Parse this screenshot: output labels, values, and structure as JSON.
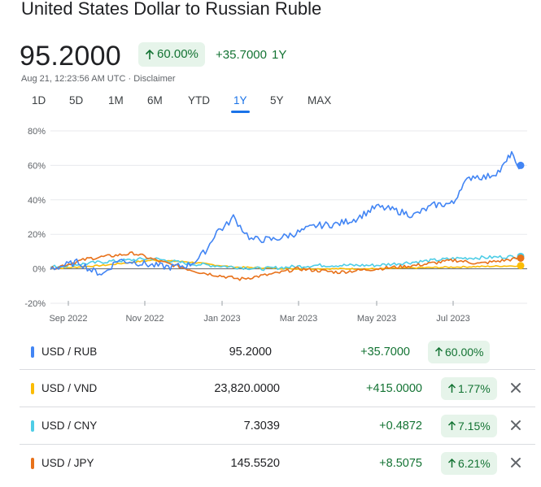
{
  "header": {
    "title": "United States Dollar to Russian Ruble",
    "price": "95.2000",
    "pct_badge": "60.00%",
    "abs_change": "+35.7000",
    "period": "1Y",
    "timestamp": "Aug 21, 12:23:56 AM UTC",
    "separator": "·",
    "disclaimer": "Disclaimer"
  },
  "ranges": [
    "1D",
    "5D",
    "1M",
    "6M",
    "YTD",
    "1Y",
    "5Y",
    "MAX"
  ],
  "active_range": "1Y",
  "colors": {
    "up_green": "#137333",
    "up_bg": "#e6f4ea",
    "accent": "#1a73e8"
  },
  "icons": {
    "up_arrow": "arrow-up-icon",
    "close": "close-icon"
  },
  "chart_data": {
    "type": "line",
    "x_tick_labels": [
      "Sep 2022",
      "Nov 2022",
      "Jan 2023",
      "Mar 2023",
      "May 2023",
      "Jul 2023"
    ],
    "y_tick_labels": [
      "80%",
      "60%",
      "40%",
      "20%",
      "0%",
      "-20%"
    ],
    "ylim": [
      -20,
      80
    ],
    "x_range": [
      "2022-08-21",
      "2023-08-21"
    ],
    "grid": "horizontal",
    "series": [
      {
        "name": "USD / RUB",
        "color": "#4285f4",
        "points": [
          [
            "2022-08-21",
            0
          ],
          [
            "2022-09-01",
            2
          ],
          [
            "2022-09-12",
            4
          ],
          [
            "2022-09-22",
            -1
          ],
          [
            "2022-10-01",
            -3
          ],
          [
            "2022-10-12",
            5
          ],
          [
            "2022-10-25",
            4
          ],
          [
            "2022-11-08",
            2
          ],
          [
            "2022-11-22",
            1
          ],
          [
            "2022-12-06",
            2
          ],
          [
            "2022-12-14",
            6
          ],
          [
            "2022-12-21",
            12
          ],
          [
            "2022-12-28",
            22
          ],
          [
            "2023-01-03",
            24
          ],
          [
            "2023-01-10",
            30
          ],
          [
            "2023-01-17",
            23
          ],
          [
            "2023-01-24",
            17
          ],
          [
            "2023-02-01",
            17
          ],
          [
            "2023-02-10",
            17
          ],
          [
            "2023-02-20",
            19
          ],
          [
            "2023-03-01",
            21
          ],
          [
            "2023-03-15",
            25
          ],
          [
            "2023-04-01",
            26
          ],
          [
            "2023-04-15",
            29
          ],
          [
            "2023-05-01",
            36
          ],
          [
            "2023-05-15",
            34
          ],
          [
            "2023-05-30",
            31
          ],
          [
            "2023-06-15",
            37
          ],
          [
            "2023-06-30",
            38
          ],
          [
            "2023-07-06",
            48
          ],
          [
            "2023-07-15",
            54
          ],
          [
            "2023-07-25",
            53
          ],
          [
            "2023-08-05",
            57
          ],
          [
            "2023-08-10",
            62
          ],
          [
            "2023-08-14",
            68
          ],
          [
            "2023-08-17",
            60
          ],
          [
            "2023-08-21",
            60
          ]
        ]
      },
      {
        "name": "USD / VND",
        "color": "#fbbc04",
        "points": [
          [
            "2022-08-21",
            0
          ],
          [
            "2022-10-01",
            2
          ],
          [
            "2022-11-08",
            5
          ],
          [
            "2022-12-06",
            4
          ],
          [
            "2023-01-10",
            1
          ],
          [
            "2023-03-01",
            0
          ],
          [
            "2023-05-01",
            0
          ],
          [
            "2023-07-01",
            1
          ],
          [
            "2023-08-21",
            1.8
          ]
        ]
      },
      {
        "name": "USD / CNY",
        "color": "#4ecde6",
        "points": [
          [
            "2022-08-21",
            1
          ],
          [
            "2022-10-01",
            4
          ],
          [
            "2022-11-08",
            6
          ],
          [
            "2022-12-06",
            3
          ],
          [
            "2023-01-10",
            1
          ],
          [
            "2023-02-01",
            0
          ],
          [
            "2023-03-15",
            2
          ],
          [
            "2023-05-01",
            2
          ],
          [
            "2023-06-01",
            4
          ],
          [
            "2023-07-01",
            6
          ],
          [
            "2023-08-21",
            7.2
          ]
        ]
      },
      {
        "name": "USD / JPY",
        "color": "#e8711a",
        "points": [
          [
            "2022-08-21",
            0
          ],
          [
            "2022-09-20",
            6
          ],
          [
            "2022-10-25",
            9
          ],
          [
            "2022-11-15",
            4
          ],
          [
            "2022-12-15",
            -2
          ],
          [
            "2023-01-15",
            -6
          ],
          [
            "2023-02-10",
            -3
          ],
          [
            "2023-03-01",
            0
          ],
          [
            "2023-04-01",
            -2
          ],
          [
            "2023-05-01",
            0
          ],
          [
            "2023-06-01",
            2
          ],
          [
            "2023-07-01",
            5
          ],
          [
            "2023-07-20",
            3
          ],
          [
            "2023-08-21",
            6.2
          ]
        ]
      }
    ]
  },
  "table": [
    {
      "pair": "USD / RUB",
      "color": "#4285f4",
      "rate": "95.2000",
      "change": "+35.7000",
      "pct": "60.00%",
      "removable": false
    },
    {
      "pair": "USD / VND",
      "color": "#fbbc04",
      "rate": "23,820.0000",
      "change": "+415.0000",
      "pct": "1.77%",
      "removable": true
    },
    {
      "pair": "USD / CNY",
      "color": "#4ecde6",
      "rate": "7.3039",
      "change": "+0.4872",
      "pct": "7.15%",
      "removable": true
    },
    {
      "pair": "USD / JPY",
      "color": "#e8711a",
      "rate": "145.5520",
      "change": "+8.5075",
      "pct": "6.21%",
      "removable": true
    }
  ]
}
